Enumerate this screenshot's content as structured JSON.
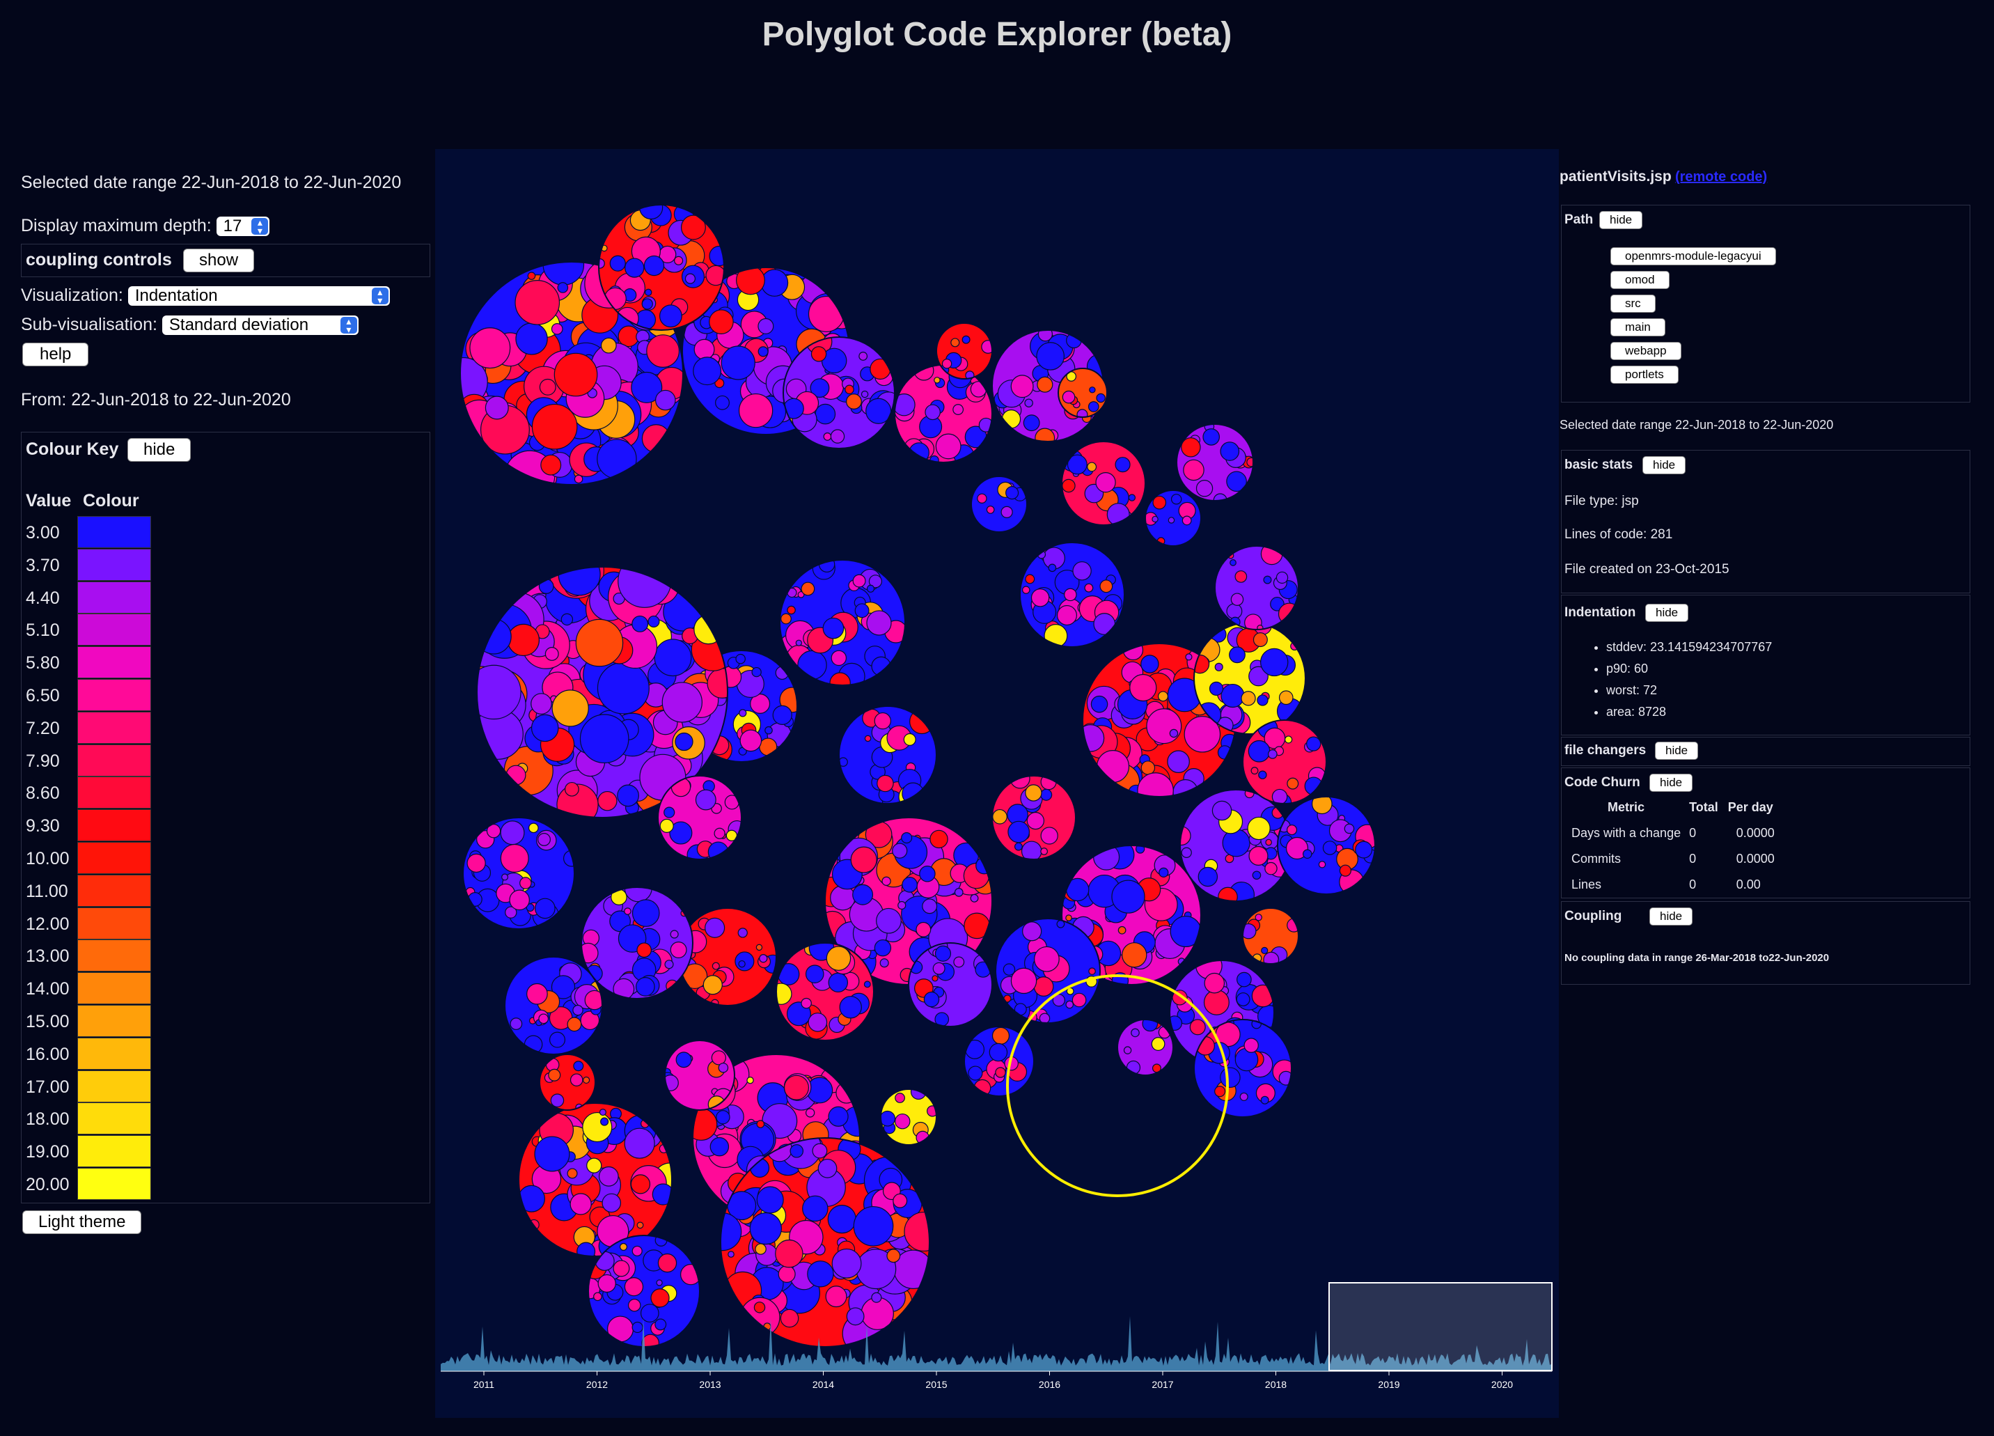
{
  "app": {
    "title": "Polyglot Code Explorer (beta)"
  },
  "left": {
    "date_range_text": "Selected date range 22-Jun-2018 to 22-Jun-2020",
    "depth_label": "Display maximum depth:",
    "depth_value": "17",
    "coupling_label": "coupling controls",
    "coupling_button": "show",
    "visualization_label": "Visualization:",
    "visualization_value": "Indentation",
    "subvis_label": "Sub-visualisation:",
    "subvis_value": "Standard deviation",
    "help_button": "help",
    "from_text": "From: 22-Jun-2018 to 22-Jun-2020",
    "colour_key_label": "Colour Key",
    "colour_key_button": "hide",
    "value_header": "Value",
    "colour_header": "Colour",
    "legend": [
      {
        "value": "3.00",
        "color": "#1a10ff"
      },
      {
        "value": "3.70",
        "color": "#7a14ff"
      },
      {
        "value": "4.40",
        "color": "#a80ef0"
      },
      {
        "value": "5.10",
        "color": "#cc0ad8"
      },
      {
        "value": "5.80",
        "color": "#f008c0"
      },
      {
        "value": "6.50",
        "color": "#ff0a98"
      },
      {
        "value": "7.20",
        "color": "#ff0a74"
      },
      {
        "value": "7.90",
        "color": "#ff0a56"
      },
      {
        "value": "8.60",
        "color": "#ff0a38"
      },
      {
        "value": "9.30",
        "color": "#ff0a12"
      },
      {
        "value": "10.00",
        "color": "#ff1408"
      },
      {
        "value": "11.00",
        "color": "#ff2c0a"
      },
      {
        "value": "12.00",
        "color": "#ff4a0a"
      },
      {
        "value": "13.00",
        "color": "#ff6a0a"
      },
      {
        "value": "14.00",
        "color": "#ff860a"
      },
      {
        "value": "15.00",
        "color": "#ffa00a"
      },
      {
        "value": "16.00",
        "color": "#ffb80a"
      },
      {
        "value": "17.00",
        "color": "#ffcc0a"
      },
      {
        "value": "18.00",
        "color": "#ffdc0a"
      },
      {
        "value": "19.00",
        "color": "#ffec0a"
      },
      {
        "value": "20.00",
        "color": "#ffff10"
      }
    ],
    "theme_button": "Light theme"
  },
  "right": {
    "file_name": "patientVisits.jsp",
    "remote_link": "(remote code)",
    "path_label": "Path",
    "path_button": "hide",
    "path_items": [
      "openmrs-module-legacyui",
      "omod",
      "src",
      "main",
      "webapp",
      "portlets"
    ],
    "date_range_text": "Selected date range 22-Jun-2018 to 22-Jun-2020",
    "basic_stats_label": "basic stats",
    "basic_stats_button": "hide",
    "file_type": "File type: jsp",
    "lines_of_code": "Lines of code: 281",
    "file_created": "File created on 23-Oct-2015",
    "indentation_label": "Indentation",
    "indentation_button": "hide",
    "indentation_items": [
      "stddev: 23.141594234707767",
      "p90: 60",
      "worst: 72",
      "area: 8728"
    ],
    "file_changers_label": "file changers",
    "file_changers_button": "hide",
    "code_churn_label": "Code Churn",
    "code_churn_button": "hide",
    "churn_headers": [
      "Metric",
      "Total",
      "Per day"
    ],
    "churn_rows": [
      [
        "Days with a change",
        "0",
        "0.0000"
      ],
      [
        "Commits",
        "0",
        "0.0000"
      ],
      [
        "Lines",
        "0",
        "0.00"
      ]
    ],
    "coupling_label": "Coupling",
    "coupling_button": "hide",
    "coupling_text": "No coupling data in range 26-Mar-2018 to22-Jun-2020"
  },
  "timeline": {
    "years": [
      "2011",
      "2012",
      "2013",
      "2014",
      "2015",
      "2016",
      "2017",
      "2018",
      "2019",
      "2020"
    ],
    "fill_color": "#4a90c0"
  }
}
